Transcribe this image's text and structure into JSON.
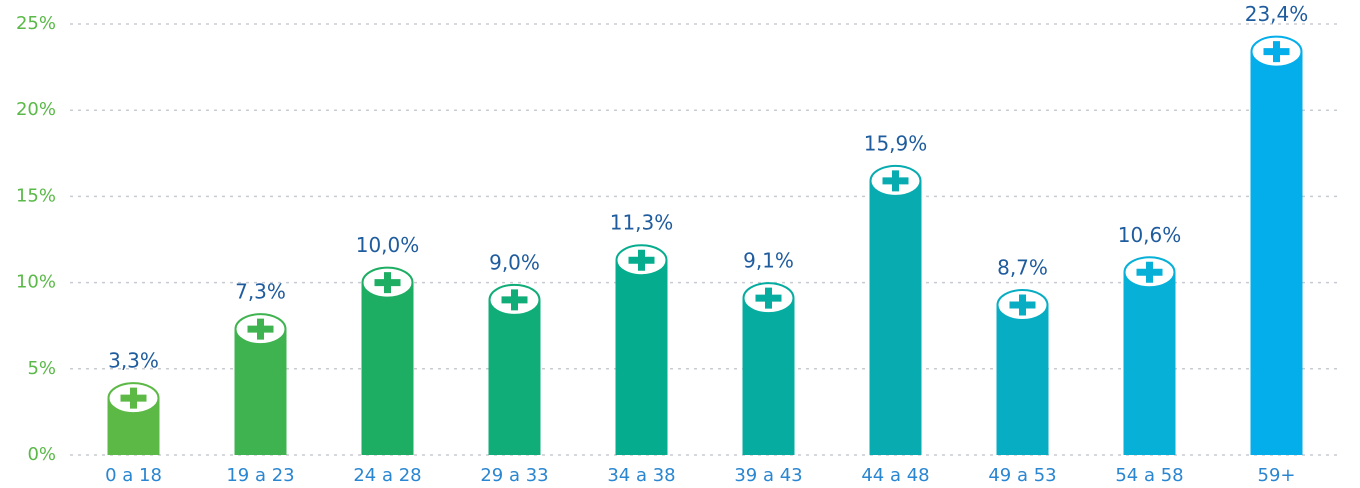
{
  "chart_data": {
    "type": "bar",
    "categories": [
      "0 a 18",
      "19 a 23",
      "24 a 28",
      "29 a 33",
      "34 a 38",
      "39 a 43",
      "44 a 48",
      "49 a 53",
      "54 a 58",
      "59+"
    ],
    "values": [
      3.3,
      7.3,
      10.0,
      9.0,
      11.3,
      9.1,
      15.9,
      8.7,
      10.6,
      23.4
    ],
    "value_labels": [
      "3,3%",
      "7,3%",
      "10,0%",
      "9,0%",
      "11,3%",
      "9,1%",
      "15,9%",
      "8,7%",
      "10,6%",
      "23,4%"
    ],
    "colors": [
      "#5cb946",
      "#3fb34f",
      "#1eae63",
      "#10ad78",
      "#05ad8e",
      "#06aca0",
      "#08abb0",
      "#07adc3",
      "#06b0d6",
      "#03aeea"
    ],
    "ylim": [
      0,
      25
    ],
    "yticks": [
      {
        "value": 0,
        "label": "0%"
      },
      {
        "value": 5,
        "label": "5%"
      },
      {
        "value": 10,
        "label": "10%"
      },
      {
        "value": 15,
        "label": "15%"
      },
      {
        "value": 20,
        "label": "20%"
      },
      {
        "value": 25,
        "label": "25%"
      }
    ],
    "grid": true
  }
}
